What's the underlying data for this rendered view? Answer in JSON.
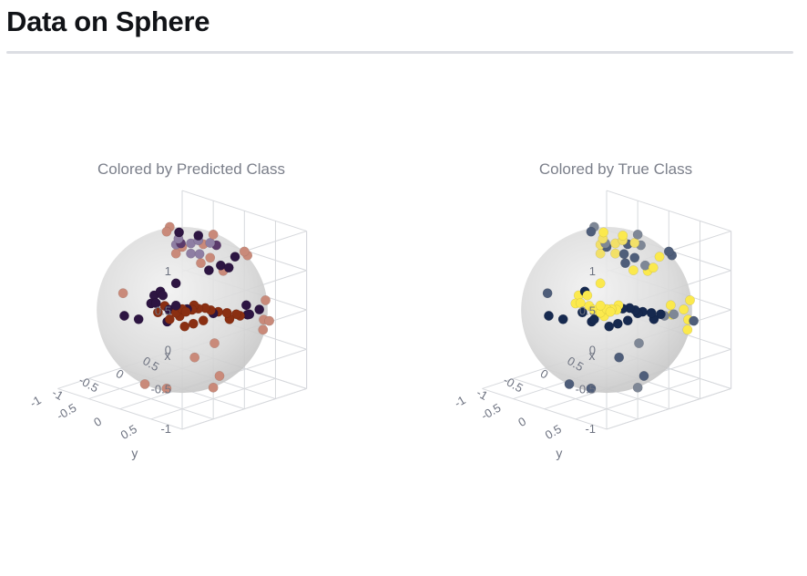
{
  "page": {
    "title": "Data on Sphere"
  },
  "chart_data": [
    {
      "type": "scatter3d",
      "title": "Colored by Predicted Class",
      "colorscale": [
        "#2d1542",
        "#5b3a6b",
        "#8e7ea3",
        "#c98a7a",
        "#8a2f12"
      ],
      "axes": {
        "x": {
          "label": "x",
          "ticks": [
            "-1",
            "-0.5",
            "0",
            "0.5"
          ],
          "range": [
            -1,
            1
          ]
        },
        "y": {
          "label": "y",
          "ticks": [
            "-1",
            "-0.5",
            "0",
            "0.5"
          ],
          "range": [
            -1,
            1
          ]
        },
        "z": {
          "label": "",
          "ticks": [
            "-1",
            "-0.5",
            "0",
            "0.5",
            "1"
          ],
          "range": [
            -1,
            1
          ]
        }
      },
      "sphere": {
        "radius": 1,
        "color": "#d9d9d9"
      },
      "points": [
        [
          0.06,
          0.2,
          0.98,
          0
        ],
        [
          0.45,
          -0.5,
          0.74,
          0
        ],
        [
          0.55,
          -0.65,
          0.52,
          2
        ],
        [
          0.68,
          -0.42,
          0.6,
          2
        ],
        [
          0.8,
          -0.25,
          0.55,
          1
        ],
        [
          0.72,
          -0.58,
          0.38,
          2
        ],
        [
          0.62,
          -0.62,
          0.48,
          3
        ],
        [
          0.74,
          -0.4,
          0.54,
          3
        ],
        [
          0.85,
          -0.4,
          0.34,
          3
        ],
        [
          0.92,
          -0.3,
          0.25,
          0
        ],
        [
          0.88,
          -0.45,
          0.16,
          0
        ],
        [
          0.94,
          -0.28,
          0.18,
          3
        ],
        [
          0.6,
          -0.7,
          0.38,
          3
        ],
        [
          0.75,
          -0.3,
          0.58,
          2
        ],
        [
          0.66,
          -0.52,
          0.54,
          2
        ],
        [
          0.58,
          -0.6,
          0.54,
          1
        ],
        [
          0.52,
          -0.58,
          0.62,
          2
        ],
        [
          0.78,
          -0.5,
          0.38,
          2
        ],
        [
          0.95,
          -0.2,
          0.24,
          0
        ],
        [
          0.9,
          -0.05,
          0.43,
          0
        ],
        [
          0.8,
          0.25,
          0.55,
          3
        ],
        [
          0.6,
          0.4,
          0.69,
          3
        ],
        [
          0.98,
          0.05,
          -0.18,
          0
        ],
        [
          0.95,
          0.1,
          -0.28,
          0
        ],
        [
          0.72,
          -0.2,
          -0.66,
          3
        ],
        [
          0.3,
          0.2,
          0.93,
          3
        ],
        [
          0.1,
          -0.3,
          0.95,
          3
        ],
        [
          -0.1,
          -0.15,
          0.98,
          3
        ],
        [
          -0.25,
          0.55,
          0.8,
          3
        ],
        [
          -0.6,
          0.5,
          0.62,
          0
        ],
        [
          -0.75,
          0.4,
          0.53,
          0
        ],
        [
          -0.8,
          0.35,
          0.48,
          0
        ],
        [
          -0.82,
          0.4,
          0.4,
          0
        ],
        [
          -0.85,
          0.35,
          0.39,
          0
        ],
        [
          -0.7,
          0.6,
          0.39,
          0
        ],
        [
          -0.62,
          0.7,
          0.35,
          0
        ],
        [
          -0.55,
          0.74,
          0.39,
          4
        ],
        [
          -0.66,
          0.66,
          0.35,
          4
        ],
        [
          -0.72,
          0.62,
          0.31,
          4
        ],
        [
          -0.78,
          0.58,
          0.23,
          4
        ],
        [
          -0.8,
          0.56,
          0.2,
          0
        ],
        [
          -0.76,
          0.55,
          0.34,
          0
        ],
        [
          -0.7,
          0.66,
          0.27,
          4
        ],
        [
          -0.64,
          0.7,
          0.32,
          4
        ],
        [
          -0.58,
          0.74,
          0.34,
          4
        ],
        [
          -0.52,
          0.78,
          0.35,
          4
        ],
        [
          -0.45,
          0.82,
          0.35,
          4
        ],
        [
          -0.4,
          0.86,
          0.32,
          4
        ],
        [
          -0.32,
          0.9,
          0.29,
          4
        ],
        [
          -0.22,
          0.94,
          0.26,
          4
        ],
        [
          -0.1,
          0.97,
          0.22,
          4
        ],
        [
          -0.75,
          0.44,
          0.49,
          0
        ],
        [
          -0.78,
          0.5,
          0.38,
          4
        ],
        [
          -0.84,
          0.45,
          0.3,
          4
        ],
        [
          -0.68,
          0.72,
          0.15,
          4
        ],
        [
          -0.6,
          0.78,
          0.18,
          4
        ],
        [
          -0.5,
          0.84,
          0.21,
          4
        ],
        [
          -0.38,
          0.88,
          0.28,
          0
        ],
        [
          -0.2,
          0.96,
          0.18,
          4
        ],
        [
          -0.05,
          0.98,
          0.19,
          4
        ],
        [
          0.1,
          0.98,
          0.17,
          0
        ],
        [
          0.3,
          0.94,
          0.17,
          0
        ],
        [
          0.5,
          0.84,
          0.21,
          3
        ],
        [
          0.7,
          0.7,
          -0.14,
          3
        ],
        [
          0.86,
          0.45,
          -0.23,
          3
        ],
        [
          0.8,
          0.5,
          -0.33,
          3
        ],
        [
          -0.98,
          0.05,
          0.19,
          0
        ],
        [
          -0.95,
          0.25,
          0.19,
          0
        ],
        [
          -0.9,
          -0.05,
          0.43,
          3
        ],
        [
          -0.4,
          -0.2,
          -0.89,
          3
        ],
        [
          -0.55,
          0.3,
          -0.78,
          3
        ],
        [
          0.4,
          0.2,
          -0.89,
          3
        ],
        [
          0.5,
          -0.3,
          -0.81,
          3
        ],
        [
          0.1,
          0.4,
          -0.91,
          3
        ]
      ]
    },
    {
      "type": "scatter3d",
      "title": "Colored by True Class",
      "colorscale": [
        "#16294f",
        "#4f5e7a",
        "#7e8796",
        "#f2e068",
        "#fbe94d"
      ],
      "axes": {
        "x": {
          "label": "x",
          "ticks": [
            "-1",
            "-0.5",
            "0",
            "0.5"
          ],
          "range": [
            -1,
            1
          ]
        },
        "y": {
          "label": "y",
          "ticks": [
            "-1",
            "-0.5",
            "0",
            "0.5"
          ],
          "range": [
            -1,
            1
          ]
        },
        "z": {
          "label": "",
          "ticks": [
            "-1",
            "-0.5",
            "0",
            "0.5",
            "1"
          ],
          "range": [
            -1,
            1
          ]
        }
      },
      "sphere": {
        "radius": 1,
        "color": "#d9d9d9"
      },
      "points": [
        [
          0.06,
          0.2,
          0.98,
          4
        ],
        [
          0.45,
          -0.5,
          0.74,
          4
        ],
        [
          0.55,
          -0.65,
          0.52,
          3
        ],
        [
          0.68,
          -0.42,
          0.6,
          3
        ],
        [
          0.8,
          -0.25,
          0.55,
          2
        ],
        [
          0.72,
          -0.58,
          0.38,
          3
        ],
        [
          0.62,
          -0.62,
          0.48,
          1
        ],
        [
          0.74,
          -0.4,
          0.54,
          1
        ],
        [
          0.85,
          -0.4,
          0.34,
          1
        ],
        [
          0.92,
          -0.3,
          0.25,
          2
        ],
        [
          0.88,
          -0.45,
          0.16,
          4
        ],
        [
          0.94,
          -0.28,
          0.18,
          4
        ],
        [
          0.6,
          -0.7,
          0.38,
          3
        ],
        [
          0.75,
          -0.3,
          0.58,
          3
        ],
        [
          0.66,
          -0.52,
          0.54,
          3
        ],
        [
          0.58,
          -0.6,
          0.54,
          2
        ],
        [
          0.52,
          -0.58,
          0.62,
          3
        ],
        [
          0.78,
          -0.5,
          0.38,
          1
        ],
        [
          0.95,
          -0.2,
          0.24,
          4
        ],
        [
          0.9,
          -0.05,
          0.43,
          4
        ],
        [
          0.8,
          0.25,
          0.55,
          1
        ],
        [
          0.6,
          0.4,
          0.69,
          1
        ],
        [
          0.98,
          0.05,
          -0.18,
          4
        ],
        [
          0.95,
          0.1,
          -0.28,
          4
        ],
        [
          0.72,
          -0.2,
          -0.66,
          2
        ],
        [
          0.3,
          0.2,
          0.93,
          2
        ],
        [
          0.1,
          -0.3,
          0.95,
          2
        ],
        [
          -0.1,
          -0.15,
          0.98,
          1
        ],
        [
          -0.25,
          0.55,
          0.8,
          1
        ],
        [
          -0.6,
          0.5,
          0.62,
          4
        ],
        [
          -0.75,
          0.4,
          0.53,
          0
        ],
        [
          -0.8,
          0.35,
          0.48,
          4
        ],
        [
          -0.82,
          0.4,
          0.4,
          4
        ],
        [
          -0.85,
          0.35,
          0.39,
          4
        ],
        [
          -0.7,
          0.6,
          0.39,
          4
        ],
        [
          -0.62,
          0.7,
          0.35,
          4
        ],
        [
          -0.55,
          0.74,
          0.39,
          4
        ],
        [
          -0.66,
          0.66,
          0.35,
          4
        ],
        [
          -0.72,
          0.62,
          0.31,
          4
        ],
        [
          -0.78,
          0.58,
          0.23,
          0
        ],
        [
          -0.8,
          0.56,
          0.2,
          0
        ],
        [
          -0.76,
          0.55,
          0.34,
          4
        ],
        [
          -0.7,
          0.66,
          0.27,
          4
        ],
        [
          -0.64,
          0.7,
          0.32,
          4
        ],
        [
          -0.58,
          0.74,
          0.34,
          4
        ],
        [
          -0.52,
          0.78,
          0.35,
          0
        ],
        [
          -0.45,
          0.82,
          0.35,
          0
        ],
        [
          -0.4,
          0.86,
          0.32,
          0
        ],
        [
          -0.32,
          0.9,
          0.29,
          0
        ],
        [
          -0.22,
          0.94,
          0.26,
          0
        ],
        [
          -0.1,
          0.97,
          0.22,
          0
        ],
        [
          -0.75,
          0.44,
          0.49,
          4
        ],
        [
          -0.78,
          0.5,
          0.38,
          4
        ],
        [
          -0.84,
          0.45,
          0.3,
          0
        ],
        [
          -0.68,
          0.72,
          0.15,
          0
        ],
        [
          -0.6,
          0.78,
          0.18,
          0
        ],
        [
          -0.5,
          0.84,
          0.21,
          0
        ],
        [
          -0.38,
          0.88,
          0.28,
          0
        ],
        [
          -0.2,
          0.96,
          0.18,
          0
        ],
        [
          -0.05,
          0.98,
          0.19,
          2
        ],
        [
          0.1,
          0.98,
          0.17,
          2
        ],
        [
          0.3,
          0.94,
          0.17,
          4
        ],
        [
          0.5,
          0.84,
          0.21,
          4
        ],
        [
          0.7,
          0.7,
          -0.14,
          1
        ],
        [
          0.86,
          0.45,
          -0.23,
          4
        ],
        [
          0.8,
          0.5,
          -0.33,
          4
        ],
        [
          -0.98,
          0.05,
          0.19,
          0
        ],
        [
          -0.95,
          0.25,
          0.19,
          0
        ],
        [
          -0.9,
          -0.05,
          0.43,
          1
        ],
        [
          -0.4,
          -0.2,
          -0.89,
          1
        ],
        [
          -0.55,
          0.3,
          -0.78,
          1
        ],
        [
          0.4,
          0.2,
          -0.89,
          1
        ],
        [
          0.5,
          -0.3,
          -0.81,
          1
        ],
        [
          0.1,
          0.4,
          -0.91,
          2
        ]
      ]
    }
  ]
}
